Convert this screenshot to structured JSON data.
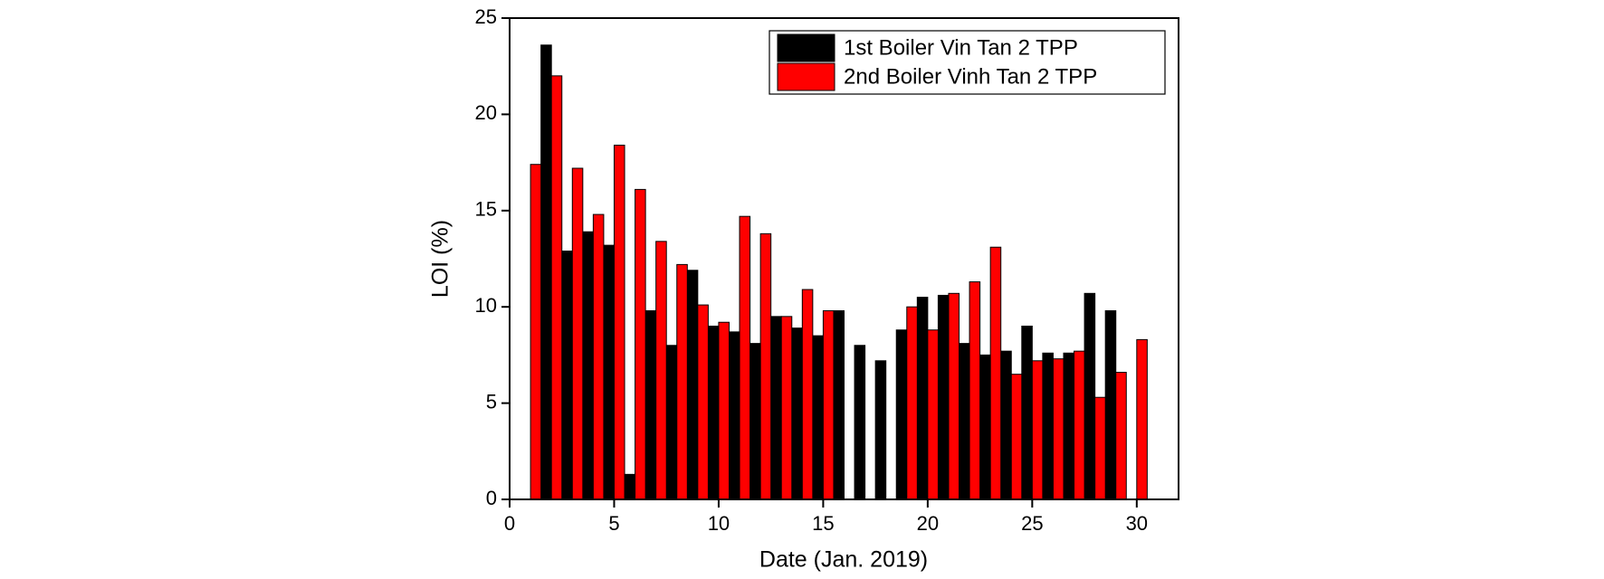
{
  "chart_data": {
    "type": "bar",
    "x_label": "Date (Jan. 2019)",
    "y_label": "LOI (%)",
    "x": [
      1,
      2,
      3,
      4,
      5,
      6,
      7,
      8,
      9,
      10,
      11,
      12,
      13,
      14,
      15,
      16,
      17,
      18,
      19,
      20,
      21,
      22,
      23,
      24,
      25,
      26,
      27,
      28,
      29,
      30
    ],
    "series": [
      {
        "name": "1st Boiler Vin Tan 2 TPP",
        "color": "#000000",
        "values": [
          null,
          23.6,
          12.9,
          13.9,
          13.2,
          1.3,
          9.8,
          8.0,
          11.9,
          9.0,
          8.7,
          8.1,
          9.5,
          8.9,
          8.5,
          9.8,
          8.0,
          7.2,
          8.8,
          10.5,
          10.6,
          8.1,
          7.5,
          7.7,
          9.0,
          7.6,
          7.6,
          10.7,
          9.8,
          null
        ]
      },
      {
        "name": "2nd Boiler Vinh Tan 2 TPP",
        "color": "#ff0000",
        "values": [
          17.4,
          22.0,
          17.2,
          14.8,
          18.4,
          16.1,
          13.4,
          12.2,
          10.1,
          9.2,
          14.7,
          13.8,
          9.5,
          10.9,
          9.8,
          null,
          null,
          null,
          10.0,
          8.8,
          10.7,
          11.3,
          13.1,
          6.5,
          7.2,
          7.3,
          7.7,
          5.3,
          6.6,
          8.3
        ]
      }
    ],
    "xlim": [
      0,
      32
    ],
    "xticks": [
      0,
      5,
      10,
      15,
      20,
      25,
      30
    ],
    "ylim": [
      0,
      25
    ],
    "yticks": [
      0,
      5,
      10,
      15,
      20,
      25
    ],
    "legend": "upper right"
  }
}
